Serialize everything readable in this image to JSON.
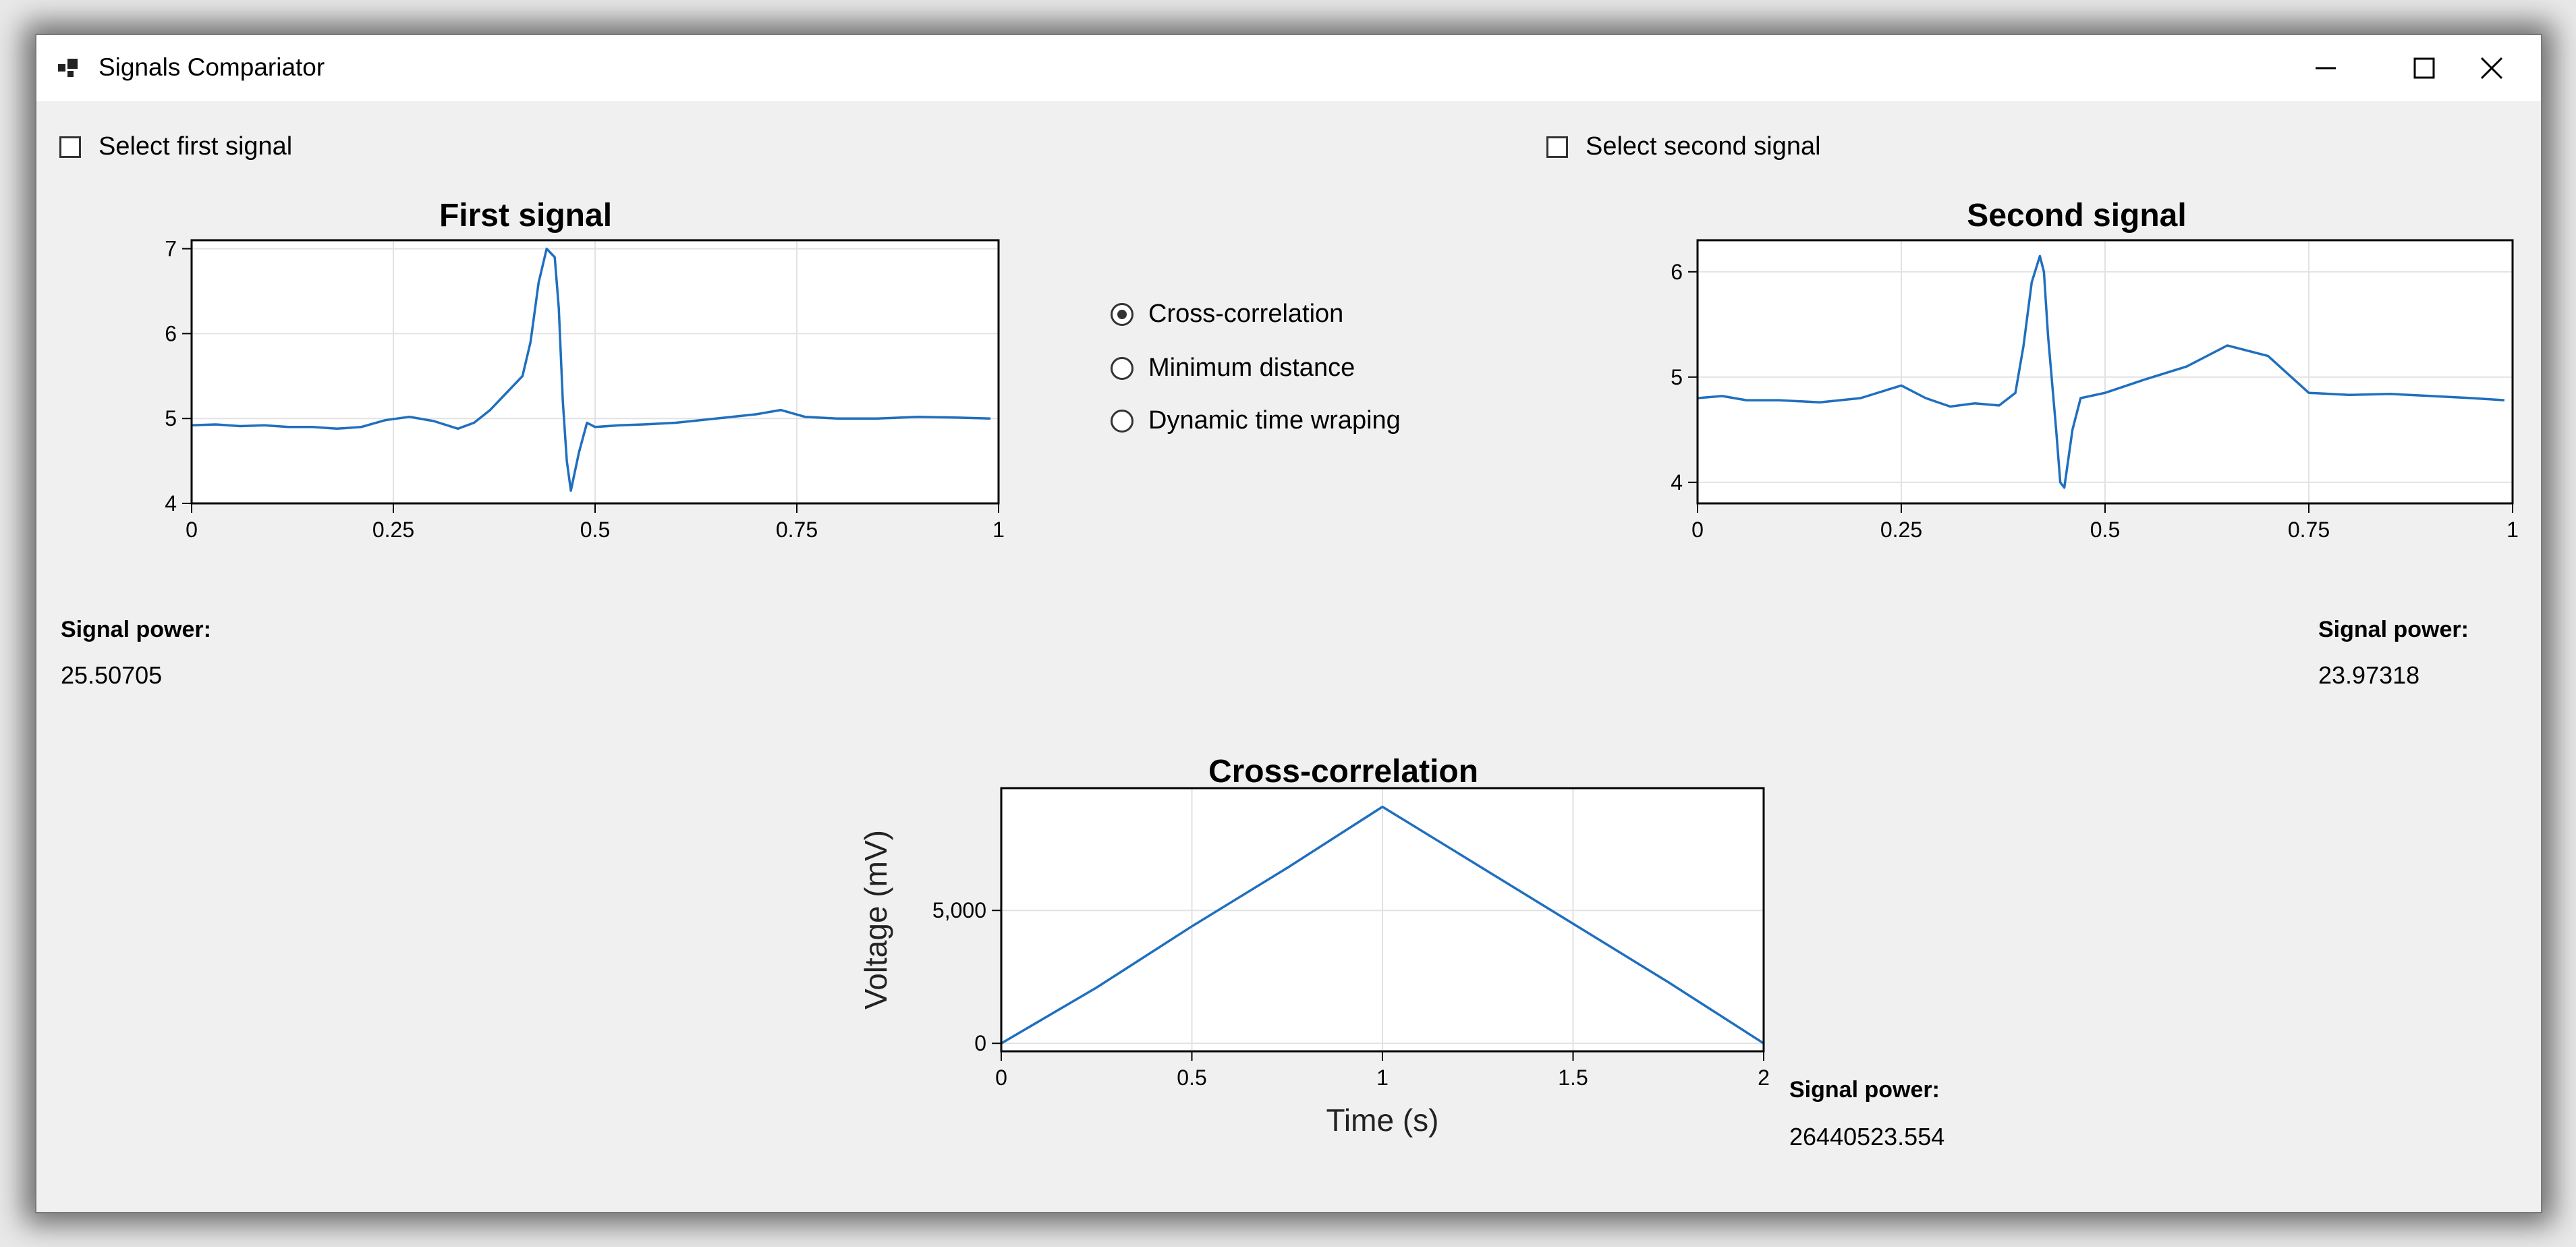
{
  "window": {
    "title": "Signals Compariator"
  },
  "controls": {
    "first_checkbox_label": "Select first signal",
    "second_checkbox_label": "Select second signal",
    "radio_options": [
      "Cross-correlation",
      "Minimum distance",
      "Dynamic time wraping"
    ],
    "selected_radio": "Cross-correlation"
  },
  "results": {
    "power_label": "Signal power:",
    "first_power": "25.50705",
    "second_power": "23.97318",
    "result_power": "26440523.554"
  },
  "colors": {
    "line": "#1f6fbf",
    "window_bg": "#f0f0f0",
    "plot_bg": "#ffffff"
  },
  "chart_data": [
    {
      "type": "line",
      "title": "First signal",
      "xlabel": "",
      "ylabel": "",
      "xlim": [
        0,
        1
      ],
      "ylim": [
        4,
        7.1
      ],
      "x_ticks": [
        "0",
        "0.25",
        "0.5",
        "0.75",
        "1"
      ],
      "y_ticks": [
        "4",
        "5",
        "6",
        "7"
      ],
      "x": [
        0,
        0.03,
        0.06,
        0.09,
        0.12,
        0.15,
        0.18,
        0.21,
        0.24,
        0.27,
        0.3,
        0.33,
        0.35,
        0.37,
        0.39,
        0.41,
        0.42,
        0.43,
        0.44,
        0.45,
        0.455,
        0.46,
        0.465,
        0.47,
        0.48,
        0.49,
        0.5,
        0.53,
        0.56,
        0.6,
        0.65,
        0.7,
        0.73,
        0.76,
        0.8,
        0.85,
        0.9,
        0.95,
        0.99
      ],
      "y": [
        4.92,
        4.93,
        4.91,
        4.92,
        4.9,
        4.9,
        4.88,
        4.9,
        4.98,
        5.02,
        4.97,
        4.88,
        4.95,
        5.1,
        5.3,
        5.5,
        5.9,
        6.6,
        7.0,
        6.9,
        6.3,
        5.2,
        4.5,
        4.15,
        4.6,
        4.95,
        4.9,
        4.92,
        4.93,
        4.95,
        5.0,
        5.05,
        5.1,
        5.02,
        5.0,
        5.0,
        5.02,
        5.01,
        5.0
      ]
    },
    {
      "type": "line",
      "title": "Second signal",
      "xlabel": "",
      "ylabel": "",
      "xlim": [
        0,
        1
      ],
      "ylim": [
        3.8,
        6.3
      ],
      "x_ticks": [
        "0",
        "0.25",
        "0.5",
        "0.75",
        "1"
      ],
      "y_ticks": [
        "4",
        "5",
        "6"
      ],
      "x": [
        0,
        0.03,
        0.06,
        0.1,
        0.15,
        0.2,
        0.25,
        0.28,
        0.31,
        0.34,
        0.37,
        0.39,
        0.4,
        0.41,
        0.42,
        0.425,
        0.43,
        0.44,
        0.445,
        0.45,
        0.46,
        0.47,
        0.5,
        0.55,
        0.6,
        0.65,
        0.7,
        0.75,
        0.8,
        0.85,
        0.9,
        0.95,
        0.99
      ],
      "y": [
        4.8,
        4.82,
        4.78,
        4.78,
        4.76,
        4.8,
        4.92,
        4.8,
        4.72,
        4.75,
        4.73,
        4.85,
        5.3,
        5.9,
        6.15,
        6.0,
        5.4,
        4.5,
        4.0,
        3.95,
        4.5,
        4.8,
        4.85,
        4.98,
        5.1,
        5.3,
        5.2,
        4.85,
        4.83,
        4.84,
        4.82,
        4.8,
        4.78
      ]
    },
    {
      "type": "line",
      "title": "Cross-correlation",
      "xlabel": "Time (s)",
      "ylabel": "Voltage (mV)",
      "xlim": [
        0,
        2
      ],
      "ylim": [
        -300,
        9600
      ],
      "x_ticks": [
        "0",
        "0.5",
        "1",
        "1.5",
        "2"
      ],
      "y_ticks": [
        "0",
        "5,000"
      ],
      "x": [
        0,
        0.25,
        0.5,
        0.75,
        1.0,
        1.25,
        1.5,
        1.75,
        2.0
      ],
      "y": [
        0,
        2100,
        4400,
        6600,
        8900,
        6700,
        4500,
        2300,
        0
      ]
    }
  ]
}
